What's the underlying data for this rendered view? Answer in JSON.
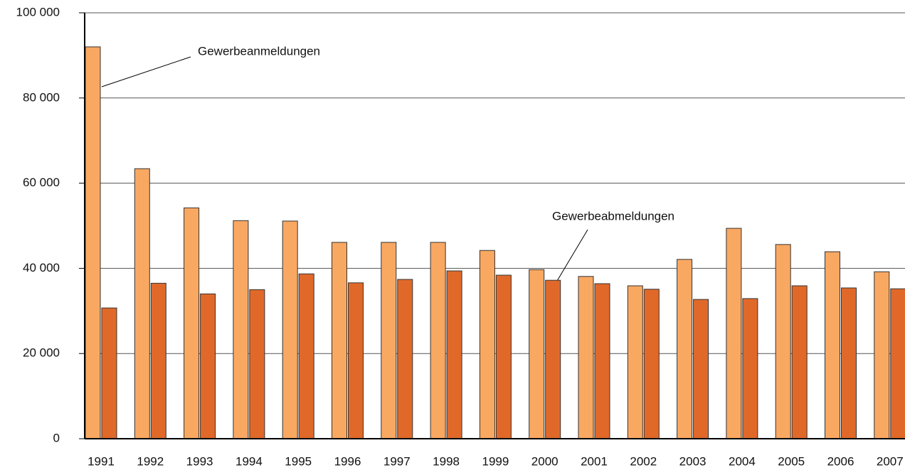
{
  "chart_data": {
    "type": "bar",
    "categories": [
      "1991",
      "1992",
      "1993",
      "1994",
      "1995",
      "1996",
      "1997",
      "1998",
      "1999",
      "2000",
      "2001",
      "2002",
      "2003",
      "2004",
      "2005",
      "2006",
      "2007"
    ],
    "series": [
      {
        "name": "Gewerbeanmeldungen",
        "color": "#f9a862",
        "values": [
          92000,
          63400,
          54200,
          51200,
          51100,
          46100,
          46100,
          46100,
          44200,
          39700,
          38100,
          35900,
          42100,
          49400,
          45600,
          43900,
          39200
        ]
      },
      {
        "name": "Gewerbeabmeldungen",
        "color": "#e0692a",
        "values": [
          30700,
          36500,
          34000,
          35000,
          38700,
          36600,
          37400,
          39400,
          38400,
          37200,
          36400,
          35100,
          32700,
          32900,
          35900,
          35400,
          35200
        ]
      }
    ],
    "ylim": [
      0,
      100000
    ],
    "yticks": [
      0,
      {
        "value": 20000,
        "label": "20 000"
      },
      {
        "value": 40000,
        "label": "40 000"
      },
      {
        "value": 60000,
        "label": "60 000"
      },
      {
        "value": 80000,
        "label": "80 000"
      },
      {
        "value": 100000,
        "label": "100 000"
      }
    ],
    "grid": true
  }
}
